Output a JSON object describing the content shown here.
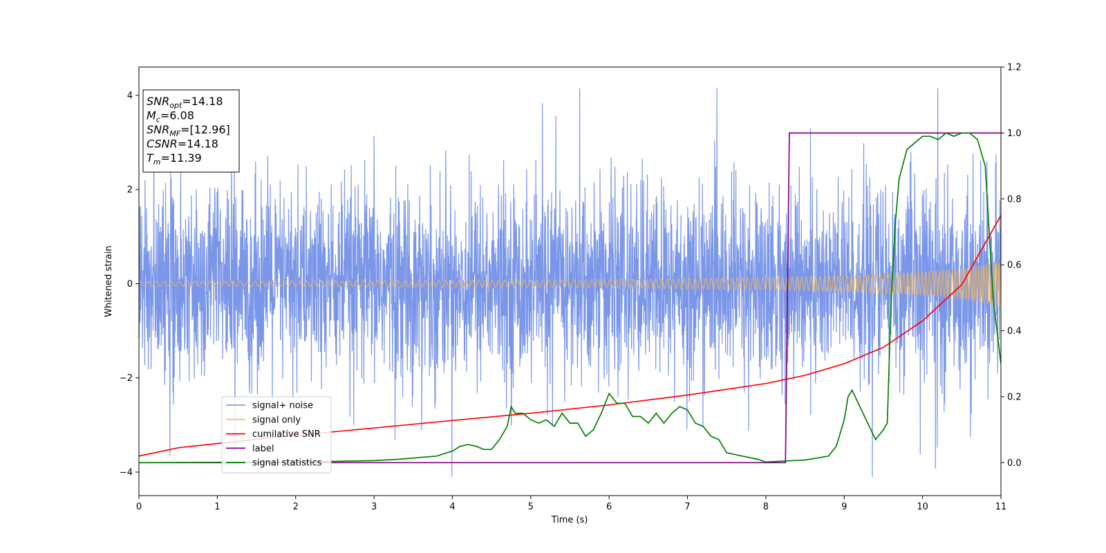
{
  "chart_data": {
    "type": "line",
    "xlabel": "Time (s)",
    "ylabel": "Whitened strain",
    "xlim": [
      0,
      11
    ],
    "ylim": [
      -4.5,
      4.6
    ],
    "y2lim": [
      -0.1,
      1.2
    ],
    "xticks": [
      "0",
      "1",
      "2",
      "3",
      "4",
      "5",
      "6",
      "7",
      "8",
      "9",
      "10",
      "11"
    ],
    "yticks": [
      "−4",
      "−2",
      "0",
      "2",
      "4"
    ],
    "y2ticks": [
      "0.0",
      "0.2",
      "0.4",
      "0.6",
      "0.8",
      "1.0",
      "1.2"
    ],
    "grid": false,
    "legend_position": "lower-left",
    "legend": [
      "signal+ noise",
      "signal only",
      "cumilative SNR",
      "label",
      "signal statistics"
    ],
    "colors": {
      "noise": "#6b8be6",
      "signal": "#f5b655",
      "cumulative": "#ff0000",
      "label": "#800080",
      "stats": "#008000"
    },
    "annotation": {
      "lines": [
        {
          "sym": "SNR",
          "sub": "opt",
          "val": "=14.18"
        },
        {
          "sym": "M",
          "sub": "c",
          "val": "=6.08"
        },
        {
          "sym": "SNR",
          "sub": "MF",
          "val": "=[12.96]"
        },
        {
          "sym": "CSNR",
          "sub": "",
          "val": "=14.18"
        },
        {
          "sym": "T",
          "sub": "m",
          "val": "=11.39"
        }
      ]
    },
    "series": [
      {
        "name": "signal+ noise",
        "axis": "left",
        "description": "whitened strain noise, roughly gaussian, spanning about -3 to +3 with spikes to about +/-4"
      },
      {
        "name": "signal only",
        "axis": "left",
        "envelope": {
          "x": [
            0,
            2,
            4,
            6,
            8,
            9,
            10,
            10.5,
            11
          ],
          "amp": [
            0.05,
            0.06,
            0.07,
            0.09,
            0.13,
            0.17,
            0.25,
            0.33,
            0.48
          ]
        }
      },
      {
        "name": "cumilative SNR",
        "axis": "right",
        "x": [
          0,
          0.5,
          1,
          2,
          3,
          4,
          5,
          6,
          7,
          8,
          8.5,
          9,
          9.5,
          10,
          10.5,
          11
        ],
        "y": [
          0.02,
          0.045,
          0.058,
          0.083,
          0.105,
          0.128,
          0.15,
          0.175,
          0.205,
          0.24,
          0.265,
          0.3,
          0.35,
          0.43,
          0.54,
          0.75
        ]
      },
      {
        "name": "label",
        "axis": "right",
        "x": [
          0,
          8.25,
          8.3,
          11
        ],
        "y": [
          0,
          0,
          1,
          1
        ]
      },
      {
        "name": "signal statistics",
        "axis": "right",
        "x": [
          0,
          1,
          2,
          2.5,
          3,
          3.3,
          3.8,
          4,
          4.1,
          4.2,
          4.3,
          4.4,
          4.5,
          4.6,
          4.7,
          4.75,
          4.8,
          4.9,
          5.0,
          5.1,
          5.2,
          5.3,
          5.4,
          5.5,
          5.6,
          5.7,
          5.8,
          5.9,
          6.0,
          6.1,
          6.2,
          6.3,
          6.4,
          6.5,
          6.6,
          6.7,
          6.8,
          6.9,
          7.0,
          7.1,
          7.2,
          7.3,
          7.4,
          7.5,
          7.7,
          7.9,
          8.0,
          8.25,
          8.5,
          8.8,
          8.9,
          9.0,
          9.05,
          9.1,
          9.2,
          9.3,
          9.4,
          9.5,
          9.55,
          9.6,
          9.65,
          9.7,
          9.8,
          9.9,
          10.0,
          10.1,
          10.2,
          10.3,
          10.4,
          10.5,
          10.6,
          10.7,
          10.8,
          10.9,
          11.0
        ],
        "y": [
          0.0,
          0.001,
          0.002,
          0.004,
          0.006,
          0.01,
          0.02,
          0.035,
          0.05,
          0.055,
          0.05,
          0.04,
          0.04,
          0.07,
          0.11,
          0.17,
          0.15,
          0.15,
          0.13,
          0.12,
          0.13,
          0.11,
          0.15,
          0.12,
          0.12,
          0.08,
          0.1,
          0.15,
          0.21,
          0.18,
          0.18,
          0.14,
          0.14,
          0.12,
          0.15,
          0.12,
          0.15,
          0.17,
          0.16,
          0.12,
          0.11,
          0.08,
          0.07,
          0.03,
          0.02,
          0.01,
          0.002,
          0.005,
          0.008,
          0.02,
          0.05,
          0.13,
          0.2,
          0.22,
          0.17,
          0.12,
          0.07,
          0.1,
          0.12,
          0.5,
          0.72,
          0.86,
          0.95,
          0.97,
          0.99,
          0.99,
          0.98,
          1.0,
          0.99,
          1.0,
          1.0,
          0.98,
          0.9,
          0.5,
          0.3
        ]
      }
    ]
  }
}
